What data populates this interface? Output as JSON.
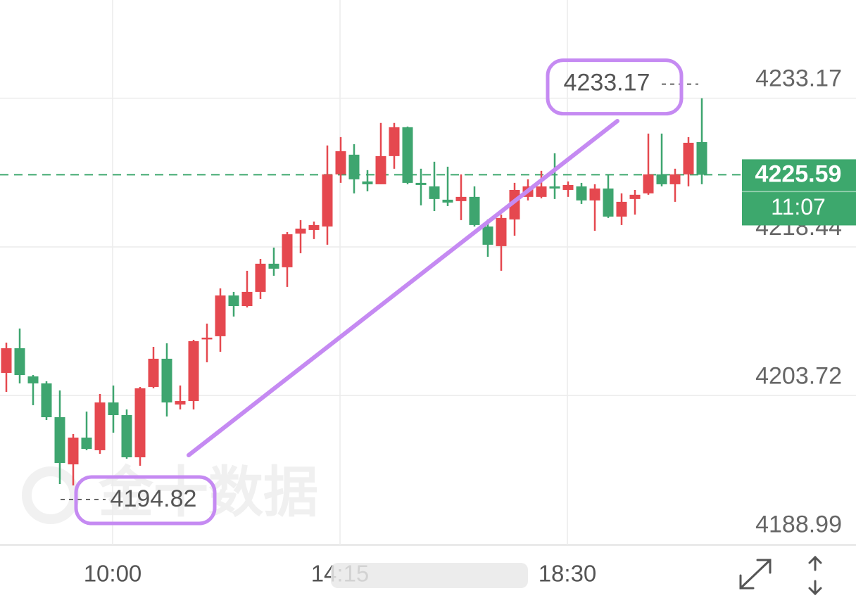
{
  "chart_data": {
    "type": "candlestick",
    "categories": [
      null,
      null,
      null,
      null,
      null,
      null,
      null,
      null,
      "10:00",
      null,
      null,
      null,
      null,
      null,
      null,
      null,
      null,
      null,
      null,
      null,
      null,
      null,
      null,
      null,
      null,
      "14:15",
      null,
      null,
      null,
      null,
      null,
      null,
      null,
      null,
      null,
      null,
      null,
      null,
      null,
      null,
      null,
      null,
      "18:30",
      null,
      null,
      null,
      null,
      null,
      null,
      null,
      null,
      null,
      null
    ],
    "open": [
      4205.97,
      4208.41,
      4205.62,
      4204.93,
      4201.58,
      4196.91,
      4199.56,
      4198.31,
      4203.04,
      4201.79,
      4197.61,
      4204.58,
      4207.37,
      4202.84,
      4203.18,
      4209.32,
      4209.6,
      4213.64,
      4212.59,
      4213.99,
      4216.78,
      4216.43,
      4219.77,
      4220.12,
      4220.47,
      4225.63,
      4227.58,
      4224.93,
      4224.65,
      4227.44,
      4230.3,
      4224.79,
      4224.44,
      4223.12,
      4222.98,
      4223.4,
      4220.47,
      4218.52,
      4221.17,
      4223.4,
      4223.4,
      4224.44,
      4224.09,
      4224.44,
      4223.05,
      4224.23,
      4221.45,
      4223.19,
      4223.75,
      4225.63,
      4224.65,
      4225.63,
      4228.83
    ],
    "high": [
      4208.97,
      4210.36,
      4205.76,
      4205.14,
      4204.23,
      4199.91,
      4202.14,
      4203.88,
      4204.72,
      4202.35,
      4204.58,
      4208.55,
      4208.9,
      4204.72,
      4209.25,
      4210.85,
      4214.34,
      4213.99,
      4216.08,
      4217.26,
      4218.38,
      4219.91,
      4221.1,
      4220.96,
      4228.49,
      4229.32,
      4228.62,
      4226.05,
      4230.72,
      4230.72,
      4230.37,
      4226.19,
      4226.88,
      4226.39,
      4225.63,
      4224.44,
      4221.17,
      4221.65,
      4224.79,
      4225.14,
      4225.98,
      4227.72,
      4224.93,
      4224.79,
      4224.65,
      4225.63,
      4223.75,
      4224.09,
      4229.67,
      4229.67,
      4226.19,
      4229.32,
      4233.17
    ],
    "low": [
      4204.09,
      4204.93,
      4202.77,
      4201.3,
      4194.96,
      4194.82,
      4198.31,
      4197.96,
      4200.05,
      4197.47,
      4196.77,
      4204.44,
      4201.65,
      4202.35,
      4202.35,
      4207.02,
      4208.06,
      4211.55,
      4212.45,
      4213.29,
      4215.59,
      4214.48,
      4217.82,
      4219.22,
      4218.66,
      4224.79,
      4223.75,
      4223.95,
      4224.65,
      4226.19,
      4224.65,
      4222.56,
      4222.0,
      4222.49,
      4221.1,
      4220.47,
      4217.47,
      4216.08,
      4219.56,
      4223.05,
      4223.26,
      4223.19,
      4223.4,
      4222.7,
      4220.05,
      4221.31,
      4220.61,
      4221.65,
      4223.61,
      4224.44,
      4222.91,
      4224.44,
      4224.65
    ],
    "close": [
      4208.41,
      4205.76,
      4204.93,
      4201.58,
      4197.05,
      4199.56,
      4198.44,
      4203.04,
      4201.79,
      4197.61,
      4204.44,
      4207.37,
      4203.04,
      4203.18,
      4209.11,
      4209.46,
      4213.64,
      4212.59,
      4213.99,
      4216.78,
      4216.29,
      4219.7,
      4220.26,
      4220.61,
      4225.63,
      4227.93,
      4225.14,
      4224.65,
      4227.44,
      4230.3,
      4224.79,
      4224.58,
      4223.19,
      4222.84,
      4223.4,
      4220.61,
      4218.66,
      4221.31,
      4224.09,
      4224.44,
      4224.44,
      4224.23,
      4224.58,
      4223.05,
      4224.23,
      4221.45,
      4222.91,
      4223.61,
      4225.63,
      4224.65,
      4225.63,
      4228.76,
      4225.59
    ],
    "up_color": "#e5484f",
    "down_color": "#3ea56f",
    "ylim": [
      4188.9,
      4242.9
    ],
    "yticks": [
      4188.99,
      4203.72,
      4218.44,
      4233.17
    ],
    "grid": true,
    "current_price": 4225.59,
    "countdown": "11:07",
    "price_color": "#3da86d",
    "high_label": 4233.17,
    "low_label": 4194.82,
    "annotation_color": "#c58af2",
    "watermark": "金十数据"
  }
}
